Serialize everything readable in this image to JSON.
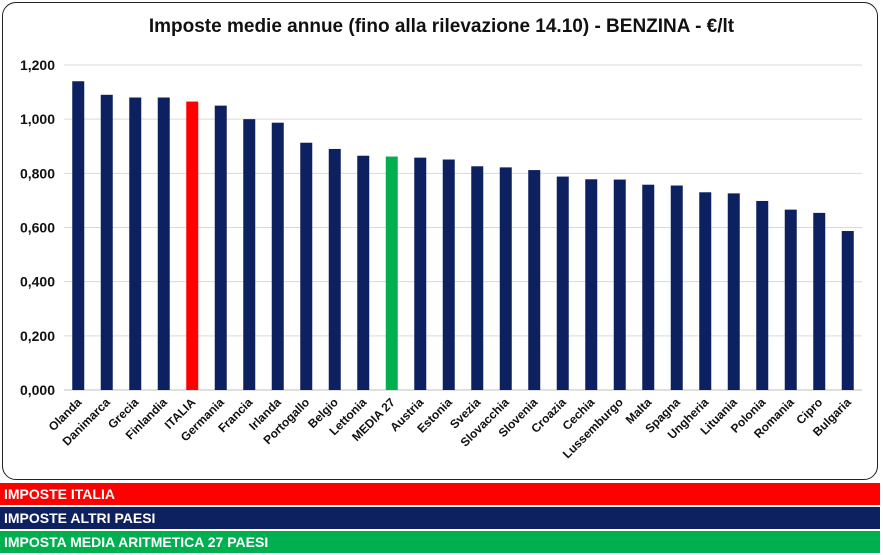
{
  "chart_data": {
    "type": "bar",
    "title": "Imposte medie annue (fino alla rilevazione 14.10) - BENZINA - €/lt",
    "xlabel": "",
    "ylabel": "",
    "ylim": [
      0,
      1.2
    ],
    "yticks": [
      "0,000",
      "0,200",
      "0,400",
      "0,600",
      "0,800",
      "1,000",
      "1,200"
    ],
    "grid": true,
    "categories": [
      "Olanda",
      "Danimarca",
      "Grecia",
      "Finlandia",
      "ITALIA",
      "Germania",
      "Francia",
      "Irlanda",
      "Portogallo",
      "Belgio",
      "Lettonia",
      "MEDIA 27",
      "Austria",
      "Estonia",
      "Svezia",
      "Slovacchia",
      "Slovenia",
      "Croazia",
      "Cechia",
      "Lussemburgo",
      "Malta",
      "Spagna",
      "Ungheria",
      "Lituania",
      "Polonia",
      "Romania",
      "Cipro",
      "Bulgaria"
    ],
    "values": [
      1.14,
      1.09,
      1.08,
      1.08,
      1.065,
      1.05,
      1.0,
      0.987,
      0.913,
      0.89,
      0.865,
      0.862,
      0.858,
      0.851,
      0.826,
      0.822,
      0.812,
      0.788,
      0.778,
      0.777,
      0.758,
      0.755,
      0.73,
      0.726,
      0.698,
      0.666,
      0.654,
      0.587
    ],
    "bar_colors": [
      "#0d2060",
      "#0d2060",
      "#0d2060",
      "#0d2060",
      "#ff0000",
      "#0d2060",
      "#0d2060",
      "#0d2060",
      "#0d2060",
      "#0d2060",
      "#0d2060",
      "#00b050",
      "#0d2060",
      "#0d2060",
      "#0d2060",
      "#0d2060",
      "#0d2060",
      "#0d2060",
      "#0d2060",
      "#0d2060",
      "#0d2060",
      "#0d2060",
      "#0d2060",
      "#0d2060",
      "#0d2060",
      "#0d2060",
      "#0d2060",
      "#0d2060"
    ]
  },
  "legend": [
    {
      "label": "IMPOSTE ITALIA",
      "color": "#ff0000"
    },
    {
      "label": "IMPOSTE ALTRI PAESI",
      "color": "#0d2060"
    },
    {
      "label": "IMPOSTA MEDIA ARITMETICA 27 PAESI",
      "color": "#00b050"
    }
  ]
}
